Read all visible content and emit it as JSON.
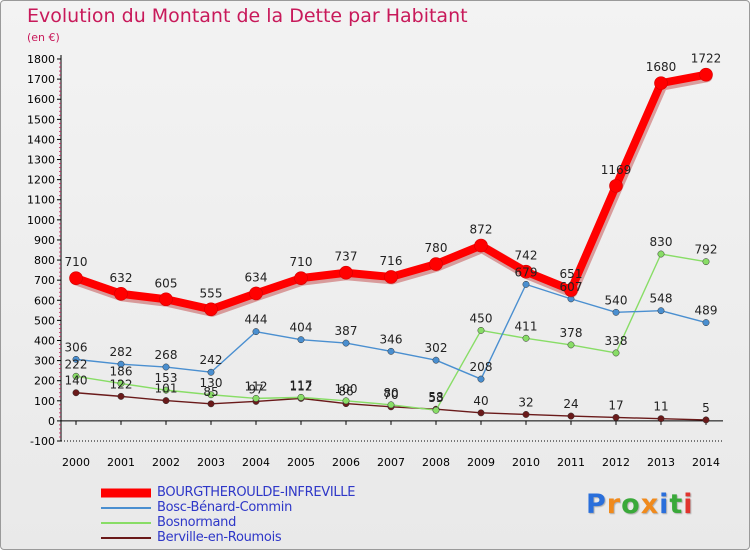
{
  "title": "Evolution du Montant de la Dette par Habitant",
  "unit_label": "(en €)",
  "logo": {
    "text": "Proxiti",
    "colors": [
      "#2a6fdb",
      "#f08a1c",
      "#3aa93a",
      "#f08a1c",
      "#2a6fdb",
      "#3aa93a",
      "#e0342e"
    ]
  },
  "chart_data": {
    "type": "line",
    "categories": [
      "2000",
      "2001",
      "2002",
      "2003",
      "2004",
      "2005",
      "2006",
      "2007",
      "2008",
      "2009",
      "2010",
      "2011",
      "2012",
      "2013",
      "2014"
    ],
    "ylim": [
      -100,
      1800
    ],
    "yticks": [
      -100,
      0,
      100,
      200,
      300,
      400,
      500,
      600,
      700,
      800,
      900,
      1000,
      1100,
      1200,
      1300,
      1400,
      1500,
      1600,
      1700,
      1800
    ],
    "grid": false,
    "legend": "bottom-left",
    "series": [
      {
        "name": "BOURGTHEROULDE-INFREVILLE",
        "color": "#ff0000",
        "values": [
          710,
          632,
          605,
          555,
          634,
          710,
          737,
          716,
          780,
          872,
          742,
          651,
          1169,
          1680,
          1722
        ],
        "labels": [
          "710",
          "632",
          "605",
          "555",
          "634",
          "710",
          "737",
          "716",
          "780",
          "872",
          "742",
          "651",
          "1169",
          "1680",
          "1722"
        ]
      },
      {
        "name": "Bosc-Bénard-Commin",
        "color": "#4a8fd0",
        "values": [
          306,
          282,
          268,
          242,
          444,
          404,
          387,
          346,
          302,
          208,
          679,
          607,
          540,
          548,
          489
        ],
        "labels": [
          "306",
          "282",
          "268",
          "242",
          "444",
          "404",
          "387",
          "346",
          "302",
          "208",
          "679",
          "607",
          "540",
          "548",
          "489"
        ]
      },
      {
        "name": "Bosnormand",
        "color": "#88dd66",
        "values": [
          222,
          186,
          153,
          130,
          112,
          117,
          100,
          80,
          53,
          450,
          411,
          378,
          338,
          830,
          792
        ],
        "labels": [
          "222",
          "186",
          "153",
          "130",
          "112",
          "117",
          "100",
          "80",
          "53",
          "450",
          "411",
          "378",
          "338",
          "830",
          "792"
        ]
      },
      {
        "name": "Berville-en-Roumois",
        "color": "#6a1a1a",
        "values": [
          140,
          122,
          101,
          85,
          97,
          112,
          86,
          70,
          58,
          40,
          32,
          24,
          17,
          11,
          5
        ],
        "labels": [
          "140",
          "122",
          "101",
          "85",
          "97",
          "112",
          "86",
          "70",
          "58",
          "40",
          "32",
          "24",
          "17",
          "11",
          "5"
        ]
      }
    ]
  }
}
